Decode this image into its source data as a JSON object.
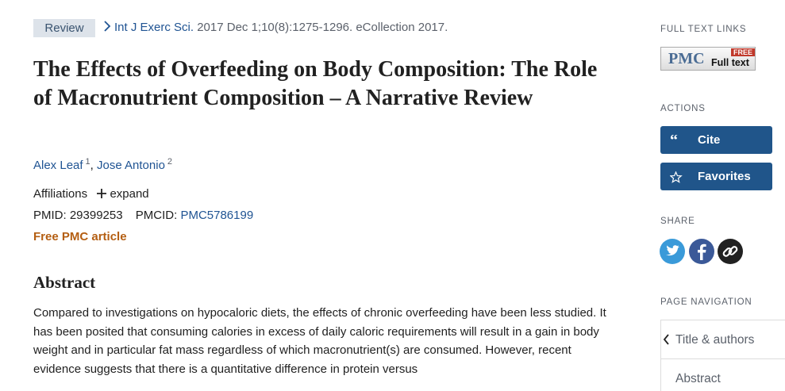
{
  "header": {
    "badge": "Review",
    "journal": "Int J Exerc Sci.",
    "citation": "2017 Dec 1;10(8):1275-1296. eCollection 2017."
  },
  "title": "The Effects of Overfeeding on Body Composition: The Role of Macronutrient Composition – A Narrative Review",
  "authors": [
    {
      "name": "Alex Leaf",
      "affiliation": "1"
    },
    {
      "name": "Jose Antonio",
      "affiliation": "2"
    }
  ],
  "author_separator": ",",
  "affiliations": {
    "label": "Affiliations",
    "toggle": "expand"
  },
  "ids": {
    "pmid_label": "PMID:",
    "pmid": "29399253",
    "pmcid_label": "PMCID:",
    "pmcid": "PMC5786199"
  },
  "free_article": "Free PMC article",
  "abstract": {
    "heading": "Abstract",
    "text": "Compared to investigations on hypocaloric diets, the effects of chronic overfeeding have been less studied. It has been posited that consuming calories in excess of daily caloric requirements will result in a gain in body weight and in particular fat mass regardless of which macronutrient(s) are consumed. However, recent evidence suggests that there is a quantitative difference in protein versus"
  },
  "sidebar": {
    "full_text_links": "FULL TEXT LINKS",
    "pmc_link": {
      "logo": "PMC",
      "free": "FREE",
      "label": "Full text"
    },
    "actions": "ACTIONS",
    "buttons": [
      "Cite",
      "Favorites"
    ],
    "share": "SHARE",
    "page_navigation": "PAGE NAVIGATION",
    "nav": [
      "Title & authors",
      "Abstract"
    ]
  }
}
